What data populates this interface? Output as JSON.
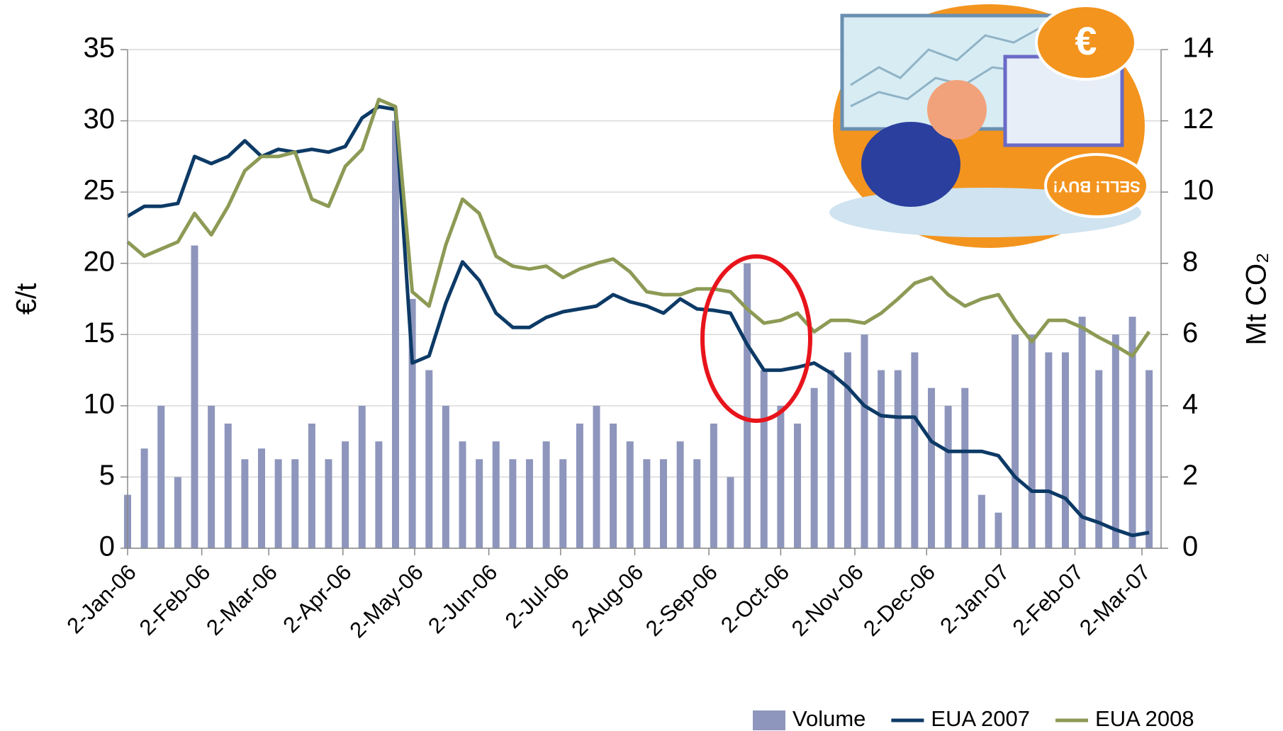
{
  "chart_data": {
    "type": "bar-line",
    "ylabel": "€/t",
    "y2label": "Mt CO₂",
    "x": [
      "2006-01-02",
      "2006-01-09",
      "2006-01-16",
      "2006-01-23",
      "2006-01-30",
      "2006-02-06",
      "2006-02-13",
      "2006-02-20",
      "2006-02-27",
      "2006-03-06",
      "2006-03-13",
      "2006-03-20",
      "2006-03-27",
      "2006-04-03",
      "2006-04-10",
      "2006-04-17",
      "2006-04-24",
      "2006-05-01",
      "2006-05-08",
      "2006-05-15",
      "2006-05-22",
      "2006-05-29",
      "2006-06-05",
      "2006-06-12",
      "2006-06-19",
      "2006-06-26",
      "2006-07-03",
      "2006-07-10",
      "2006-07-17",
      "2006-07-24",
      "2006-07-31",
      "2006-08-07",
      "2006-08-14",
      "2006-08-21",
      "2006-08-28",
      "2006-09-04",
      "2006-09-11",
      "2006-09-18",
      "2006-09-25",
      "2006-10-02",
      "2006-10-09",
      "2006-10-16",
      "2006-10-23",
      "2006-10-30",
      "2006-11-06",
      "2006-11-13",
      "2006-11-20",
      "2006-11-27",
      "2006-12-04",
      "2006-12-11",
      "2006-12-18",
      "2006-12-25",
      "2007-01-01",
      "2007-01-08",
      "2007-01-15",
      "2007-01-22",
      "2007-01-29",
      "2007-02-05",
      "2007-02-12",
      "2007-02-19",
      "2007-02-26",
      "2007-03-05"
    ],
    "series": [
      {
        "name": "Volume",
        "kind": "bar",
        "axis": "y2",
        "color": "#8e96bd",
        "values": [
          1.5,
          2.8,
          4,
          2,
          8.5,
          4,
          3.5,
          2.5,
          2.8,
          2.5,
          2.5,
          3.5,
          2.5,
          3,
          4,
          3,
          12,
          7,
          5,
          4,
          3,
          2.5,
          3,
          2.5,
          2.5,
          3,
          2.5,
          3.5,
          4,
          3.5,
          3,
          2.5,
          2.5,
          3,
          2.5,
          3.5,
          2,
          8,
          5,
          4,
          3.5,
          4.5,
          5,
          5.5,
          6,
          5,
          5,
          5.5,
          4.5,
          4,
          4.5,
          1.5,
          1,
          6,
          6,
          5.5,
          5.5,
          6.5,
          5,
          6,
          6.5,
          5
        ]
      },
      {
        "name": "EUA 2007",
        "kind": "line",
        "color": "#0d3a66",
        "values": [
          23.3,
          24,
          24,
          24.2,
          27.5,
          27,
          27.5,
          28.6,
          27.5,
          28,
          27.8,
          28,
          27.8,
          28.2,
          30.2,
          31,
          30.8,
          13,
          13.5,
          17.2,
          20.1,
          18.8,
          16.5,
          15.5,
          15.5,
          16.2,
          16.6,
          16.8,
          17,
          17.8,
          17.3,
          17,
          16.5,
          17.5,
          16.8,
          16.7,
          16.5,
          14.3,
          12.5,
          12.5,
          12.7,
          13,
          12.3,
          11.3,
          10,
          9.3,
          9.2,
          9.2,
          7.5,
          6.8,
          6.8,
          6.8,
          6.5,
          5,
          4,
          4,
          3.5,
          2.2,
          1.8,
          1.3,
          0.9,
          1.1
        ]
      },
      {
        "name": "EUA 2008",
        "kind": "line",
        "color": "#8c9a55",
        "values": [
          21.5,
          20.5,
          21,
          21.5,
          23.5,
          22,
          24,
          26.5,
          27.5,
          27.5,
          27.8,
          24.5,
          24,
          26.8,
          28,
          31.5,
          31,
          18,
          17,
          21.3,
          24.5,
          23.5,
          20.5,
          19.8,
          19.6,
          19.8,
          19,
          19.6,
          20,
          20.3,
          19.4,
          18,
          17.8,
          17.8,
          18.2,
          18.2,
          18,
          16.8,
          15.8,
          16,
          16.5,
          15.2,
          16,
          16,
          15.8,
          16.5,
          17.5,
          18.6,
          19,
          17.8,
          17,
          17.5,
          17.8,
          16,
          14.5,
          16,
          16,
          15.5,
          14.8,
          14.2,
          13.5,
          15.2
        ]
      }
    ],
    "xlim": [
      "2006-01-02",
      "2007-03-10"
    ],
    "xticks": [
      {
        "value": "2006-01-02",
        "label": "2-Jan-06"
      },
      {
        "value": "2006-02-02",
        "label": "2-Feb-06"
      },
      {
        "value": "2006-03-02",
        "label": "2-Mar-06"
      },
      {
        "value": "2006-04-02",
        "label": "2-Apr-06"
      },
      {
        "value": "2006-05-02",
        "label": "2-May-06"
      },
      {
        "value": "2006-06-02",
        "label": "2-Jun-06"
      },
      {
        "value": "2006-07-02",
        "label": "2-Jul-06"
      },
      {
        "value": "2006-08-02",
        "label": "2-Aug-06"
      },
      {
        "value": "2006-09-02",
        "label": "2-Sep-06"
      },
      {
        "value": "2006-10-02",
        "label": "2-Oct-06"
      },
      {
        "value": "2006-11-02",
        "label": "2-Nov-06"
      },
      {
        "value": "2006-12-02",
        "label": "2-Dec-06"
      },
      {
        "value": "2007-01-02",
        "label": "2-Jan-07"
      },
      {
        "value": "2007-02-02",
        "label": "2-Feb-07"
      },
      {
        "value": "2007-03-02",
        "label": "2-Mar-07"
      }
    ],
    "ylim": [
      0,
      35
    ],
    "yticks": [
      0,
      5,
      10,
      15,
      20,
      25,
      30,
      35
    ],
    "y2lim": [
      0,
      14
    ],
    "y2ticks": [
      0,
      2,
      4,
      6,
      8,
      10,
      12,
      14
    ],
    "grid": true,
    "legend": "bottom-right",
    "illustration_texts": {
      "bubble": "€",
      "sign": "SELL! BUY!"
    }
  }
}
